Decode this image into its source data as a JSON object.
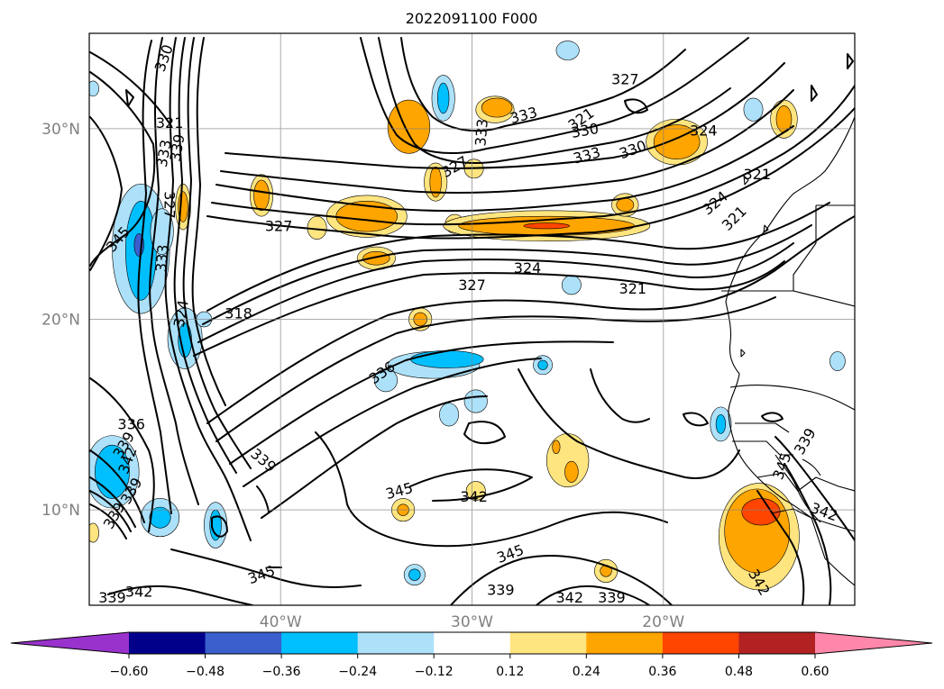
{
  "figure": {
    "title": "2022091100 F000"
  },
  "map": {
    "extent": {
      "lon_min": -50,
      "lon_max": -10,
      "lat_min": 5,
      "lat_max": 35
    },
    "gridlines": true,
    "lat_ticks": [
      {
        "lat": 30,
        "label": "30°N"
      },
      {
        "lat": 20,
        "label": "20°N"
      },
      {
        "lat": 10,
        "label": "10°N"
      }
    ],
    "lon_ticks": [
      {
        "lon": -40,
        "label": "40°W"
      },
      {
        "lon": -30,
        "label": "30°W"
      },
      {
        "lon": -20,
        "label": "20°W"
      }
    ],
    "contour_labels": [
      {
        "text": "330",
        "lon": -46.1,
        "lat": 33.7,
        "rot": -70
      },
      {
        "text": "321",
        "lon": -45.8,
        "lat": 30.3,
        "rot": 0
      },
      {
        "text": "339",
        "lon": -45.4,
        "lat": 29.0,
        "rot": -80
      },
      {
        "text": "333",
        "lon": -46.1,
        "lat": 28.7,
        "rot": -80
      },
      {
        "text": "327",
        "lon": -45.8,
        "lat": 26.0,
        "rot": 90
      },
      {
        "text": "345",
        "lon": -48.5,
        "lat": 24.2,
        "rot": -50
      },
      {
        "text": "333",
        "lon": -46.2,
        "lat": 23.2,
        "rot": -85
      },
      {
        "text": "327",
        "lon": -40.1,
        "lat": 24.9,
        "rot": 0
      },
      {
        "text": "324",
        "lon": -45.2,
        "lat": 20.3,
        "rot": -80
      },
      {
        "text": "318",
        "lon": -42.2,
        "lat": 20.3,
        "rot": 0
      },
      {
        "text": "336",
        "lon": -47.8,
        "lat": 14.5,
        "rot": 0
      },
      {
        "text": "339",
        "lon": -48.2,
        "lat": 13.4,
        "rot": -60
      },
      {
        "text": "342",
        "lon": -48.0,
        "lat": 12.6,
        "rot": -70
      },
      {
        "text": "339",
        "lon": -47.8,
        "lat": 11.0,
        "rot": -60
      },
      {
        "text": "339",
        "lon": -48.7,
        "lat": 9.7,
        "rot": -60
      },
      {
        "text": "336",
        "lon": -34.7,
        "lat": 17.2,
        "rot": -35
      },
      {
        "text": "339",
        "lon": -40.9,
        "lat": 12.6,
        "rot": 40
      },
      {
        "text": "345",
        "lon": -33.8,
        "lat": 11.0,
        "rot": -15
      },
      {
        "text": "342",
        "lon": -29.9,
        "lat": 10.7,
        "rot": 0
      },
      {
        "text": "345",
        "lon": -28.0,
        "lat": 7.7,
        "rot": -20
      },
      {
        "text": "345",
        "lon": -41.0,
        "lat": 6.6,
        "rot": -20
      },
      {
        "text": "342",
        "lon": -47.4,
        "lat": 5.7,
        "rot": 0
      },
      {
        "text": "339",
        "lon": -48.8,
        "lat": 5.4,
        "rot": 0
      },
      {
        "text": "339",
        "lon": -28.5,
        "lat": 5.8,
        "rot": 0
      },
      {
        "text": "342",
        "lon": -24.9,
        "lat": 5.4,
        "rot": 0
      },
      {
        "text": "339",
        "lon": -22.7,
        "lat": 5.4,
        "rot": 0
      },
      {
        "text": "327",
        "lon": -22.0,
        "lat": 32.6,
        "rot": 0
      },
      {
        "text": "333",
        "lon": -29.5,
        "lat": 29.8,
        "rot": -85
      },
      {
        "text": "333",
        "lon": -27.3,
        "lat": 30.7,
        "rot": -15
      },
      {
        "text": "321",
        "lon": -24.3,
        "lat": 30.5,
        "rot": -35
      },
      {
        "text": "330",
        "lon": -24.1,
        "lat": 29.9,
        "rot": -10
      },
      {
        "text": "327",
        "lon": -30.9,
        "lat": 28.0,
        "rot": -30
      },
      {
        "text": "333",
        "lon": -24.0,
        "lat": 28.6,
        "rot": -15
      },
      {
        "text": "330",
        "lon": -21.6,
        "lat": 28.9,
        "rot": -20
      },
      {
        "text": "324",
        "lon": -17.9,
        "lat": 29.9,
        "rot": 0
      },
      {
        "text": "321",
        "lon": -15.1,
        "lat": 27.6,
        "rot": 0
      },
      {
        "text": "324",
        "lon": -17.3,
        "lat": 26.1,
        "rot": -40
      },
      {
        "text": "321",
        "lon": -16.3,
        "lat": 25.3,
        "rot": -45
      },
      {
        "text": "324",
        "lon": -27.1,
        "lat": 22.7,
        "rot": 0
      },
      {
        "text": "327",
        "lon": -30.0,
        "lat": 21.8,
        "rot": 0
      },
      {
        "text": "321",
        "lon": -21.6,
        "lat": 21.6,
        "rot": 0
      },
      {
        "text": "339",
        "lon": -12.6,
        "lat": 13.6,
        "rot": -60
      },
      {
        "text": "345",
        "lon": -13.8,
        "lat": 12.3,
        "rot": -70
      },
      {
        "text": "342",
        "lon": -11.6,
        "lat": 9.9,
        "rot": 20
      },
      {
        "text": "342",
        "lon": -15.0,
        "lat": 6.2,
        "rot": 60
      }
    ],
    "shaded_regions": [
      {
        "level": 0.28,
        "lon": -33.3,
        "lat": 30.1,
        "rlon": 1.1,
        "rlat": 1.4
      },
      {
        "level": 0.2,
        "lon": -28.8,
        "lat": 31.0,
        "rlon": 1.0,
        "rlat": 0.7
      },
      {
        "level": 0.28,
        "lon": -28.7,
        "lat": 31.1,
        "rlon": 0.8,
        "rlat": 0.5
      },
      {
        "level": 0.2,
        "lon": -31.9,
        "lat": 27.2,
        "rlon": 0.6,
        "rlat": 1.0
      },
      {
        "level": 0.28,
        "lon": -31.9,
        "lat": 27.2,
        "rlon": 0.3,
        "rlat": 0.8
      },
      {
        "level": 0.2,
        "lon": -29.9,
        "lat": 27.9,
        "rlon": 0.5,
        "rlat": 0.5
      },
      {
        "level": 0.2,
        "lon": -41.0,
        "lat": 26.5,
        "rlon": 0.6,
        "rlat": 1.1
      },
      {
        "level": 0.28,
        "lon": -41.0,
        "lat": 26.5,
        "rlon": 0.4,
        "rlat": 0.8
      },
      {
        "level": 0.2,
        "lon": -45.1,
        "lat": 25.9,
        "rlon": 0.4,
        "rlat": 1.2
      },
      {
        "level": 0.28,
        "lon": -45.1,
        "lat": 25.9,
        "rlon": 0.25,
        "rlat": 0.8
      },
      {
        "level": 0.2,
        "lon": -35.5,
        "lat": 25.4,
        "rlon": 2.1,
        "rlat": 1.1
      },
      {
        "level": 0.28,
        "lon": -35.5,
        "lat": 25.4,
        "rlon": 1.6,
        "rlat": 0.8
      },
      {
        "level": 0.2,
        "lon": -38.1,
        "lat": 24.8,
        "rlon": 0.5,
        "rlat": 0.6
      },
      {
        "level": 0.2,
        "lon": -35.0,
        "lat": 23.2,
        "rlon": 1.0,
        "rlat": 0.6
      },
      {
        "level": 0.28,
        "lon": -35.0,
        "lat": 23.2,
        "rlon": 0.7,
        "rlat": 0.35
      },
      {
        "level": 0.2,
        "lon": -30.9,
        "lat": 25.0,
        "rlon": 0.5,
        "rlat": 0.5
      },
      {
        "level": 0.2,
        "lon": -26.1,
        "lat": 24.9,
        "rlon": 5.4,
        "rlat": 0.8
      },
      {
        "level": 0.28,
        "lon": -26.1,
        "lat": 24.9,
        "rlon": 4.6,
        "rlat": 0.5
      },
      {
        "level": 0.4,
        "lon": -26.1,
        "lat": 24.9,
        "rlon": 1.2,
        "rlat": 0.15
      },
      {
        "level": 0.2,
        "lon": -22.0,
        "lat": 26.0,
        "rlon": 0.7,
        "rlat": 0.6
      },
      {
        "level": 0.28,
        "lon": -22.0,
        "lat": 26.0,
        "rlon": 0.45,
        "rlat": 0.35
      },
      {
        "level": 0.2,
        "lon": -19.3,
        "lat": 29.3,
        "rlon": 1.6,
        "rlat": 1.2
      },
      {
        "level": 0.28,
        "lon": -19.3,
        "lat": 29.3,
        "rlon": 1.2,
        "rlat": 0.9
      },
      {
        "level": 0.2,
        "lon": -13.7,
        "lat": 30.5,
        "rlon": 0.7,
        "rlat": 1.0
      },
      {
        "level": 0.28,
        "lon": -13.7,
        "lat": 30.5,
        "rlon": 0.4,
        "rlat": 0.7
      },
      {
        "level": 0.2,
        "lon": -32.7,
        "lat": 20.0,
        "rlon": 0.6,
        "rlat": 0.6
      },
      {
        "level": 0.28,
        "lon": -32.7,
        "lat": 20.0,
        "rlon": 0.35,
        "rlat": 0.35
      },
      {
        "level": 0.2,
        "lon": -25.0,
        "lat": 12.6,
        "rlon": 1.1,
        "rlat": 1.4
      },
      {
        "level": 0.28,
        "lon": -24.8,
        "lat": 12.0,
        "rlon": 0.35,
        "rlat": 0.55
      },
      {
        "level": 0.28,
        "lon": -25.6,
        "lat": 13.3,
        "rlon": 0.2,
        "rlat": 0.35
      },
      {
        "level": 0.2,
        "lon": -29.8,
        "lat": 11.0,
        "rlon": 0.5,
        "rlat": 0.5
      },
      {
        "level": 0.2,
        "lon": -33.6,
        "lat": 10.0,
        "rlon": 0.6,
        "rlat": 0.6
      },
      {
        "level": 0.28,
        "lon": -33.6,
        "lat": 10.0,
        "rlon": 0.3,
        "rlat": 0.3
      },
      {
        "level": 0.2,
        "lon": -23.0,
        "lat": 6.8,
        "rlon": 0.6,
        "rlat": 0.6
      },
      {
        "level": 0.28,
        "lon": -23.0,
        "lat": 6.8,
        "rlon": 0.3,
        "rlat": 0.3
      },
      {
        "level": 0.2,
        "lon": -15.0,
        "lat": 8.6,
        "rlon": 2.1,
        "rlat": 2.8
      },
      {
        "level": 0.28,
        "lon": -15.1,
        "lat": 8.9,
        "rlon": 1.7,
        "rlat": 2.2
      },
      {
        "level": 0.4,
        "lon": -14.9,
        "lat": 9.9,
        "rlon": 1.0,
        "rlat": 0.7
      },
      {
        "level": 0.2,
        "lon": -49.8,
        "lat": 8.8,
        "rlon": 0.3,
        "rlat": 0.5
      },
      {
        "level": -0.18,
        "lon": -47.3,
        "lat": 23.7,
        "rlon": 1.5,
        "rlat": 3.4
      },
      {
        "level": -0.3,
        "lon": -47.3,
        "lat": 23.6,
        "rlon": 0.8,
        "rlat": 2.6
      },
      {
        "level": -0.42,
        "lon": -47.4,
        "lat": 23.9,
        "rlon": 0.25,
        "rlat": 0.6
      },
      {
        "level": -0.18,
        "lon": -46.2,
        "lat": 24.6,
        "rlon": 0.6,
        "rlat": 1.2
      },
      {
        "level": -0.18,
        "lon": -45.0,
        "lat": 19.0,
        "rlon": 0.9,
        "rlat": 1.6
      },
      {
        "level": -0.3,
        "lon": -45.0,
        "lat": 18.9,
        "rlon": 0.35,
        "rlat": 0.9
      },
      {
        "level": -0.18,
        "lon": -32.0,
        "lat": 17.6,
        "rlon": 2.4,
        "rlat": 0.7
      },
      {
        "level": -0.3,
        "lon": -31.3,
        "lat": 17.9,
        "rlon": 1.9,
        "rlat": 0.45
      },
      {
        "level": -0.18,
        "lon": -34.5,
        "lat": 16.8,
        "rlon": 0.6,
        "rlat": 0.6
      },
      {
        "level": -0.18,
        "lon": -31.5,
        "lat": 31.6,
        "rlon": 0.6,
        "rlat": 1.2
      },
      {
        "level": -0.3,
        "lon": -31.5,
        "lat": 31.6,
        "rlon": 0.3,
        "rlat": 0.8
      },
      {
        "level": -0.18,
        "lon": -26.3,
        "lat": 17.6,
        "rlon": 0.5,
        "rlat": 0.5
      },
      {
        "level": -0.3,
        "lon": -26.3,
        "lat": 17.6,
        "rlon": 0.25,
        "rlat": 0.25
      },
      {
        "level": -0.18,
        "lon": -29.8,
        "lat": 15.7,
        "rlon": 0.6,
        "rlat": 0.6
      },
      {
        "level": -0.18,
        "lon": -31.2,
        "lat": 15.0,
        "rlon": 0.5,
        "rlat": 0.6
      },
      {
        "level": -0.18,
        "lon": -48.8,
        "lat": 12.0,
        "rlon": 1.4,
        "rlat": 1.9
      },
      {
        "level": -0.3,
        "lon": -48.8,
        "lat": 12.0,
        "rlon": 0.9,
        "rlat": 1.4
      },
      {
        "level": -0.18,
        "lon": -46.3,
        "lat": 9.6,
        "rlon": 1.0,
        "rlat": 1.0
      },
      {
        "level": -0.3,
        "lon": -46.3,
        "lat": 9.6,
        "rlon": 0.55,
        "rlat": 0.55
      },
      {
        "level": -0.18,
        "lon": -43.4,
        "lat": 9.2,
        "rlon": 0.6,
        "rlat": 1.2
      },
      {
        "level": -0.3,
        "lon": -43.4,
        "lat": 9.2,
        "rlon": 0.3,
        "rlat": 0.8
      },
      {
        "level": -0.18,
        "lon": -33.0,
        "lat": 6.6,
        "rlon": 0.55,
        "rlat": 0.55
      },
      {
        "level": -0.3,
        "lon": -33.0,
        "lat": 6.6,
        "rlon": 0.3,
        "rlat": 0.3
      },
      {
        "level": -0.18,
        "lon": -17.0,
        "lat": 14.5,
        "rlon": 0.55,
        "rlat": 0.9
      },
      {
        "level": -0.3,
        "lon": -17.0,
        "lat": 14.5,
        "rlon": 0.25,
        "rlat": 0.5
      },
      {
        "level": -0.18,
        "lon": -15.3,
        "lat": 31.0,
        "rlon": 0.5,
        "rlat": 0.6
      },
      {
        "level": -0.18,
        "lon": -25.0,
        "lat": 34.1,
        "rlon": 0.6,
        "rlat": 0.5
      },
      {
        "level": -0.18,
        "lon": -24.8,
        "lat": 21.8,
        "rlon": 0.5,
        "rlat": 0.5
      },
      {
        "level": -0.18,
        "lon": -44.0,
        "lat": 20.0,
        "rlon": 0.4,
        "rlat": 0.4
      },
      {
        "level": -0.18,
        "lon": -49.8,
        "lat": 32.1,
        "rlon": 0.3,
        "rlat": 0.4
      },
      {
        "level": -0.18,
        "lon": -10.9,
        "lat": 17.8,
        "rlon": 0.4,
        "rlat": 0.5
      }
    ]
  },
  "colorbar": {
    "levels": [
      -0.6,
      -0.48,
      -0.36,
      -0.24,
      -0.12,
      0.12,
      0.24,
      0.36,
      0.48,
      0.6
    ],
    "tick_labels": [
      "−0.60",
      "−0.48",
      "−0.36",
      "−0.24",
      "−0.12",
      "0.12",
      "0.24",
      "0.36",
      "0.48",
      "0.60"
    ],
    "under_color": "#9932CC",
    "over_color": "#FF88AA",
    "bin_colors": [
      "#00008B",
      "#3A5FCD",
      "#00BFFF",
      "#ADE1FA",
      "#FFFFFF",
      "#FFE580",
      "#FFA500",
      "#FF4500",
      "#B22222"
    ]
  }
}
